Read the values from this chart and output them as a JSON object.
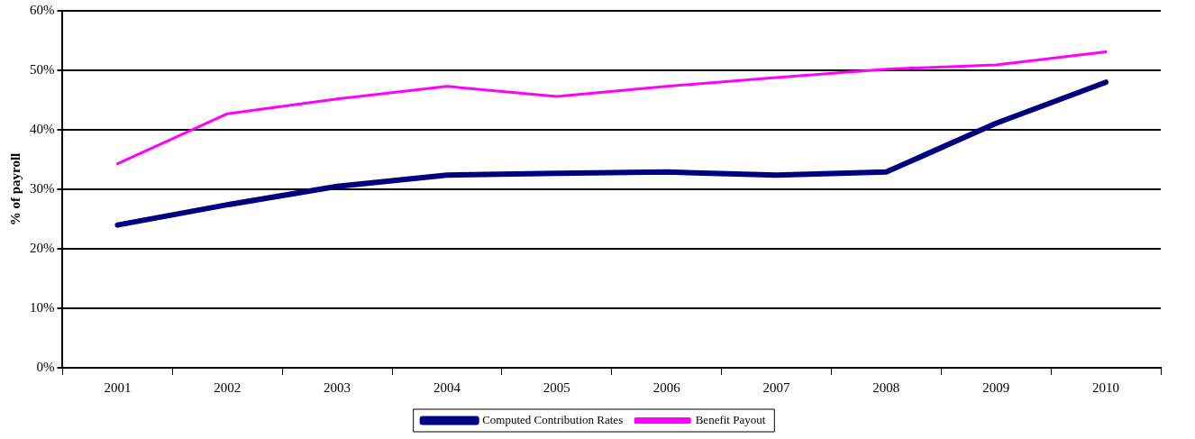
{
  "chart_data": {
    "type": "line",
    "ylabel": "% of payroll",
    "categories": [
      "2001",
      "2002",
      "2003",
      "2004",
      "2005",
      "2006",
      "2007",
      "2008",
      "2009",
      "2010"
    ],
    "series": [
      {
        "name": "Computed Contribution Rates",
        "color": "#000080",
        "values": [
          24.0,
          27.4,
          30.5,
          32.4,
          32.7,
          32.9,
          32.4,
          32.9,
          41.1,
          48.0
        ]
      },
      {
        "name": "Benefit Payout",
        "color": "#ff00ff",
        "values": [
          34.3,
          42.7,
          45.2,
          47.3,
          45.6,
          47.3,
          48.8,
          50.2,
          50.9,
          53.1
        ]
      }
    ],
    "ylim": [
      0,
      60
    ],
    "yticks": [
      {
        "value": 0,
        "label": "0%"
      },
      {
        "value": 10,
        "label": "10%"
      },
      {
        "value": 20,
        "label": "20%"
      },
      {
        "value": 30,
        "label": "30%"
      },
      {
        "value": 40,
        "label": "40%"
      },
      {
        "value": 50,
        "label": "50%"
      },
      {
        "value": 60,
        "label": "60%"
      }
    ],
    "grid": "y",
    "legend": "bottom",
    "marker": "none",
    "line_style": "solid"
  }
}
